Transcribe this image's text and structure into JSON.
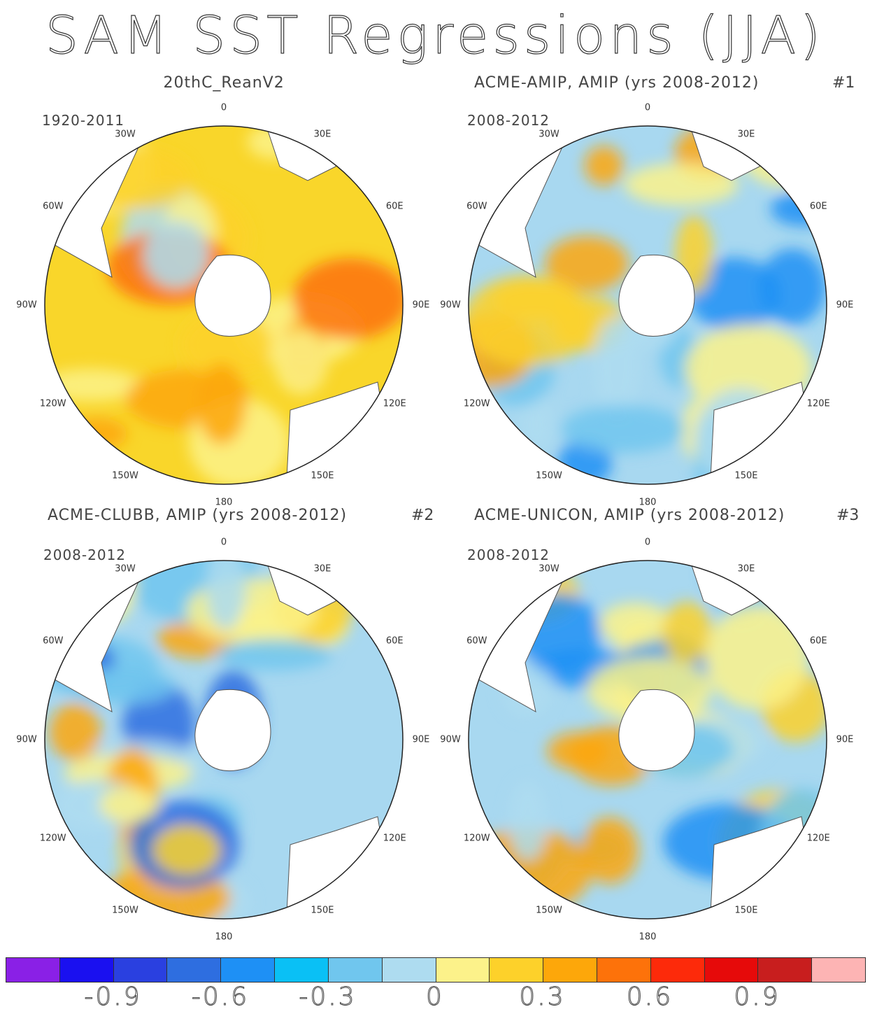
{
  "title": "SAM SST Regressions (JJA)",
  "panels": [
    {
      "title": "20thC_ReanV2",
      "id": "",
      "period": "1920-2011",
      "base": "#f9d62a",
      "pattern": "warm"
    },
    {
      "title": "ACME-AMIP, AMIP (yrs 2008-2012)",
      "id": "#1",
      "period": "2008-2012",
      "base": "#a8d8f0",
      "pattern": "mixedA"
    },
    {
      "title": "ACME-CLUBB, AMIP (yrs 2008-2012)",
      "id": "#2",
      "period": "2008-2012",
      "base": "#a8d8f0",
      "pattern": "mixedB"
    },
    {
      "title": "ACME-UNICON, AMIP (yrs 2008-2012)",
      "id": "#3",
      "period": "2008-2012",
      "base": "#a8d8f0",
      "pattern": "mixedC"
    }
  ],
  "lon_labels": [
    "0",
    "30E",
    "60E",
    "90E",
    "120E",
    "150E",
    "180",
    "150W",
    "120W",
    "90W",
    "60W",
    "30W"
  ],
  "colorbar": {
    "colors": [
      "#8a20e6",
      "#1a10f0",
      "#2a40e0",
      "#2e6ee0",
      "#1e90f5",
      "#0ac0f5",
      "#70c6ee",
      "#aedcf0",
      "#fcf28a",
      "#fdd12a",
      "#fda70a",
      "#fd720a",
      "#fd2a0a",
      "#e60a0a",
      "#c81e1e",
      "#fdb4b4"
    ],
    "tick_labels": [
      "-0.9",
      "-0.6",
      "-0.3",
      "0",
      "0.3",
      "0.6",
      "0.9"
    ]
  }
}
